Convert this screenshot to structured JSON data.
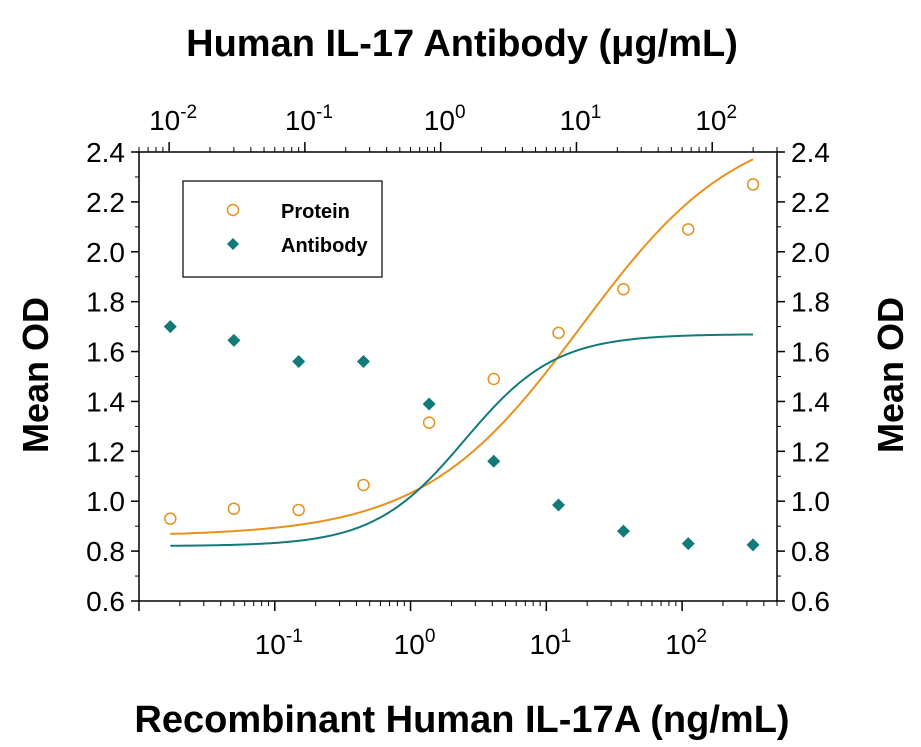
{
  "chart_data": {
    "type": "scatter",
    "title": "Human IL-17 Antibody (μg/mL)",
    "xlabel": "Recombinant Human IL-17A (ng/mL)",
    "ylabel": "Mean OD",
    "ylabel_right": "Mean OD",
    "x_scale": "log",
    "xlim": [
      0.01,
      500
    ],
    "ylim": [
      0.6,
      2.4
    ],
    "x_top_scale": "log",
    "x_top_lim": [
      0.006,
      300
    ],
    "yticks": [
      "0.6",
      "0.8",
      "1.0",
      "1.2",
      "1.4",
      "1.6",
      "1.8",
      "2.0",
      "2.2",
      "2.4"
    ],
    "xticks_bottom": [
      {
        "value": 0.1,
        "base": "10",
        "exp": "-1"
      },
      {
        "value": 1,
        "base": "10",
        "exp": "0"
      },
      {
        "value": 10,
        "base": "10",
        "exp": "1"
      },
      {
        "value": 100,
        "base": "10",
        "exp": "2"
      }
    ],
    "xticks_top": [
      {
        "value": 0.01,
        "base": "10",
        "exp": "-2"
      },
      {
        "value": 0.1,
        "base": "10",
        "exp": "-1"
      },
      {
        "value": 1,
        "base": "10",
        "exp": "0"
      },
      {
        "value": 10,
        "base": "10",
        "exp": "1"
      },
      {
        "value": 100,
        "base": "10",
        "exp": "2"
      }
    ],
    "legend_position": "top-left",
    "series": [
      {
        "name": "Protein",
        "marker": "open-circle",
        "color": "#e8901e",
        "x": [
          0.017,
          0.05,
          0.15,
          0.45,
          1.37,
          4.1,
          12.3,
          37,
          111,
          333
        ],
        "y": [
          0.93,
          0.97,
          0.965,
          1.065,
          1.315,
          1.49,
          1.675,
          1.85,
          2.09,
          2.27
        ],
        "curve": {
          "bottom": 0.86,
          "top": 2.54,
          "ec50": 18,
          "hill": 0.75
        }
      },
      {
        "name": "Antibody",
        "marker": "filled-diamond",
        "color": "#137a7a",
        "x": [
          0.017,
          0.05,
          0.15,
          0.45,
          1.37,
          4.1,
          12.3,
          37,
          111,
          333
        ],
        "y": [
          1.7,
          1.645,
          1.56,
          1.56,
          1.39,
          1.16,
          0.985,
          0.88,
          0.83,
          0.825
        ],
        "curve": {
          "top": 1.67,
          "bottom": 0.82,
          "ec50": 2.5,
          "hill": 1.3
        }
      }
    ]
  }
}
